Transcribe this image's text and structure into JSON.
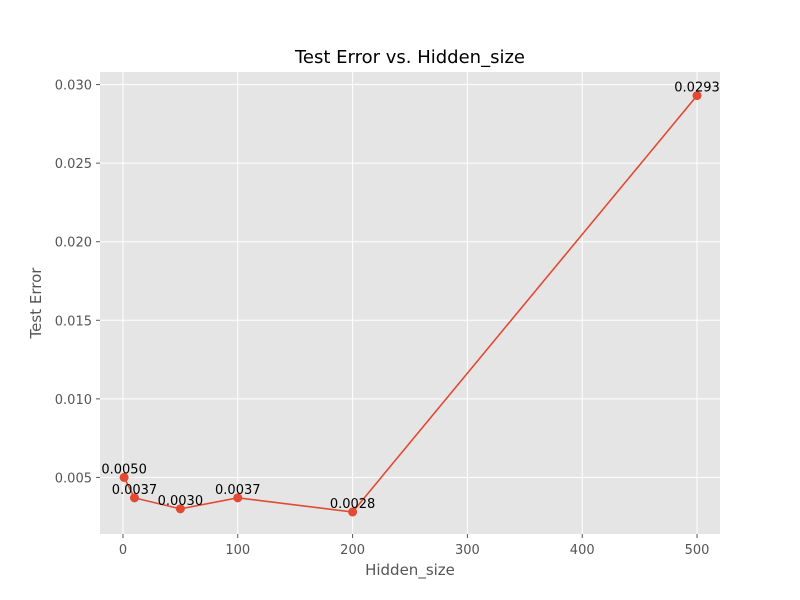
{
  "chart_data": {
    "type": "line",
    "title": "Test Error vs. Hidden_size",
    "xlabel": "Hidden_size",
    "ylabel": "Test Error",
    "xlim": [
      -20,
      520
    ],
    "ylim": [
      0.0014,
      0.0308
    ],
    "xticks": [
      0,
      100,
      200,
      300,
      400,
      500
    ],
    "yticks": [
      0.005,
      0.01,
      0.015,
      0.02,
      0.025,
      0.03
    ],
    "ytick_labels": [
      "0.005",
      "0.010",
      "0.015",
      "0.020",
      "0.025",
      "0.030"
    ],
    "grid": true,
    "series": [
      {
        "color": "#E24A33",
        "x": [
          1,
          10,
          50,
          100,
          200,
          500
        ],
        "y": [
          0.005,
          0.0037,
          0.003,
          0.0037,
          0.0028,
          0.0293
        ],
        "labels": [
          "0.0050",
          "0.0037",
          "0.0030",
          "0.0037",
          "0.0028",
          "0.0293"
        ]
      }
    ],
    "plot_background": "#E5E5E5",
    "grid_color": "#FFFFFF"
  }
}
